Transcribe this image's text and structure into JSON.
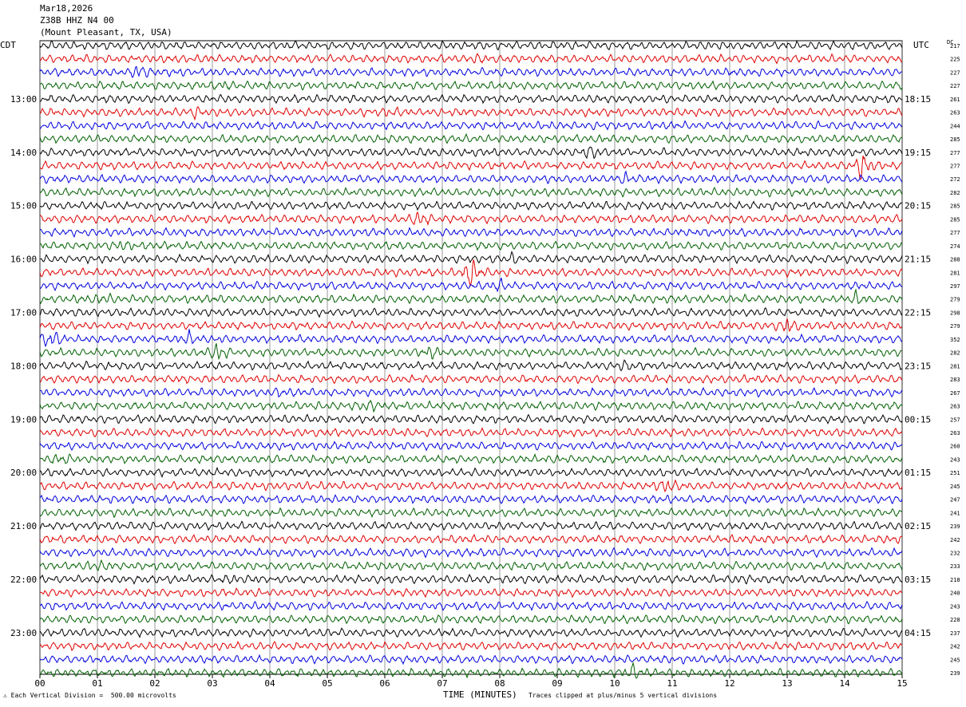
{
  "header": {
    "date": "Mar18,2026",
    "station": "Z38B HHZ N4 00",
    "location": "(Mount Pleasant, TX, USA)"
  },
  "left_zone": "CDT",
  "right_zone": "UTC",
  "dc_label": "DC",
  "footer": {
    "scale": "Each Vertical Division =  500.00 microvolts",
    "clip": "Traces clipped at plus/minus 5 vertical divisions",
    "xlabel": "TIME (MINUTES)"
  },
  "chart_data": {
    "type": "line",
    "xlabel": "TIME (MINUTES)",
    "xlim": [
      0,
      15
    ],
    "x_ticks": [
      "00",
      "01",
      "02",
      "03",
      "04",
      "05",
      "06",
      "07",
      "08",
      "09",
      "10",
      "11",
      "12",
      "13",
      "14",
      "15"
    ],
    "left_time_labels": [
      "13:00",
      "14:00",
      "15:00",
      "16:00",
      "17:00",
      "18:00",
      "19:00",
      "20:00",
      "21:00",
      "22:00",
      "23:00"
    ],
    "right_time_labels": [
      "18:15",
      "19:15",
      "20:15",
      "21:15",
      "22:15",
      "23:15",
      "00:15",
      "01:15",
      "02:15",
      "03:15",
      "04:15"
    ],
    "label_every_n_traces": 4,
    "first_label_trace_index": 4,
    "trace_colors": [
      "#000000",
      "#e00000",
      "#0000e0",
      "#006000"
    ],
    "dc_offsets": [
      217,
      225,
      227,
      227,
      261,
      263,
      244,
      285,
      277,
      277,
      272,
      282,
      285,
      285,
      277,
      274,
      288,
      281,
      297,
      279,
      298,
      279,
      352,
      282,
      281,
      283,
      267,
      263,
      257,
      263,
      260,
      243,
      251,
      245,
      247,
      241,
      239,
      242,
      232,
      233,
      218,
      240,
      243,
      228,
      237,
      242,
      245,
      239
    ],
    "events": [
      {
        "trace": 2,
        "minute": 1.75,
        "amp": 2.0
      },
      {
        "trace": 1,
        "minute": 7.6,
        "amp": 1.3
      },
      {
        "trace": 3,
        "minute": 3.2,
        "amp": 1.4
      },
      {
        "trace": 5,
        "minute": 2.7,
        "amp": 1.5
      },
      {
        "trace": 5,
        "minute": 6.1,
        "amp": 1.6
      },
      {
        "trace": 8,
        "minute": 9.6,
        "amp": 1.8
      },
      {
        "trace": 9,
        "minute": 14.3,
        "amp": 3.0
      },
      {
        "trace": 10,
        "minute": 10.2,
        "amp": 1.4
      },
      {
        "trace": 13,
        "minute": 6.6,
        "amp": 2.2
      },
      {
        "trace": 15,
        "minute": 1.4,
        "amp": 1.4
      },
      {
        "trace": 16,
        "minute": 8.2,
        "amp": 1.4
      },
      {
        "trace": 17,
        "minute": 7.5,
        "amp": 2.8
      },
      {
        "trace": 18,
        "minute": 8.0,
        "amp": 1.5
      },
      {
        "trace": 19,
        "minute": 1.1,
        "amp": 1.6
      },
      {
        "trace": 19,
        "minute": 14.2,
        "amp": 1.5
      },
      {
        "trace": 21,
        "minute": 13.0,
        "amp": 2.0
      },
      {
        "trace": 22,
        "minute": 0.2,
        "amp": 2.6
      },
      {
        "trace": 22,
        "minute": 2.6,
        "amp": 1.6
      },
      {
        "trace": 23,
        "minute": 3.1,
        "amp": 2.2
      },
      {
        "trace": 23,
        "minute": 6.8,
        "amp": 1.6
      },
      {
        "trace": 24,
        "minute": 10.2,
        "amp": 1.4
      },
      {
        "trace": 26,
        "minute": 4.2,
        "amp": 1.3
      },
      {
        "trace": 27,
        "minute": 5.7,
        "amp": 1.6
      },
      {
        "trace": 31,
        "minute": 0.4,
        "amp": 1.5
      },
      {
        "trace": 33,
        "minute": 10.9,
        "amp": 2.0
      },
      {
        "trace": 38,
        "minute": 9.9,
        "amp": 1.2
      },
      {
        "trace": 39,
        "minute": 1.0,
        "amp": 1.5
      },
      {
        "trace": 40,
        "minute": 3.4,
        "amp": 1.4
      },
      {
        "trace": 40,
        "minute": 12.2,
        "amp": 1.3
      },
      {
        "trace": 47,
        "minute": 10.3,
        "amp": 1.8
      }
    ]
  }
}
